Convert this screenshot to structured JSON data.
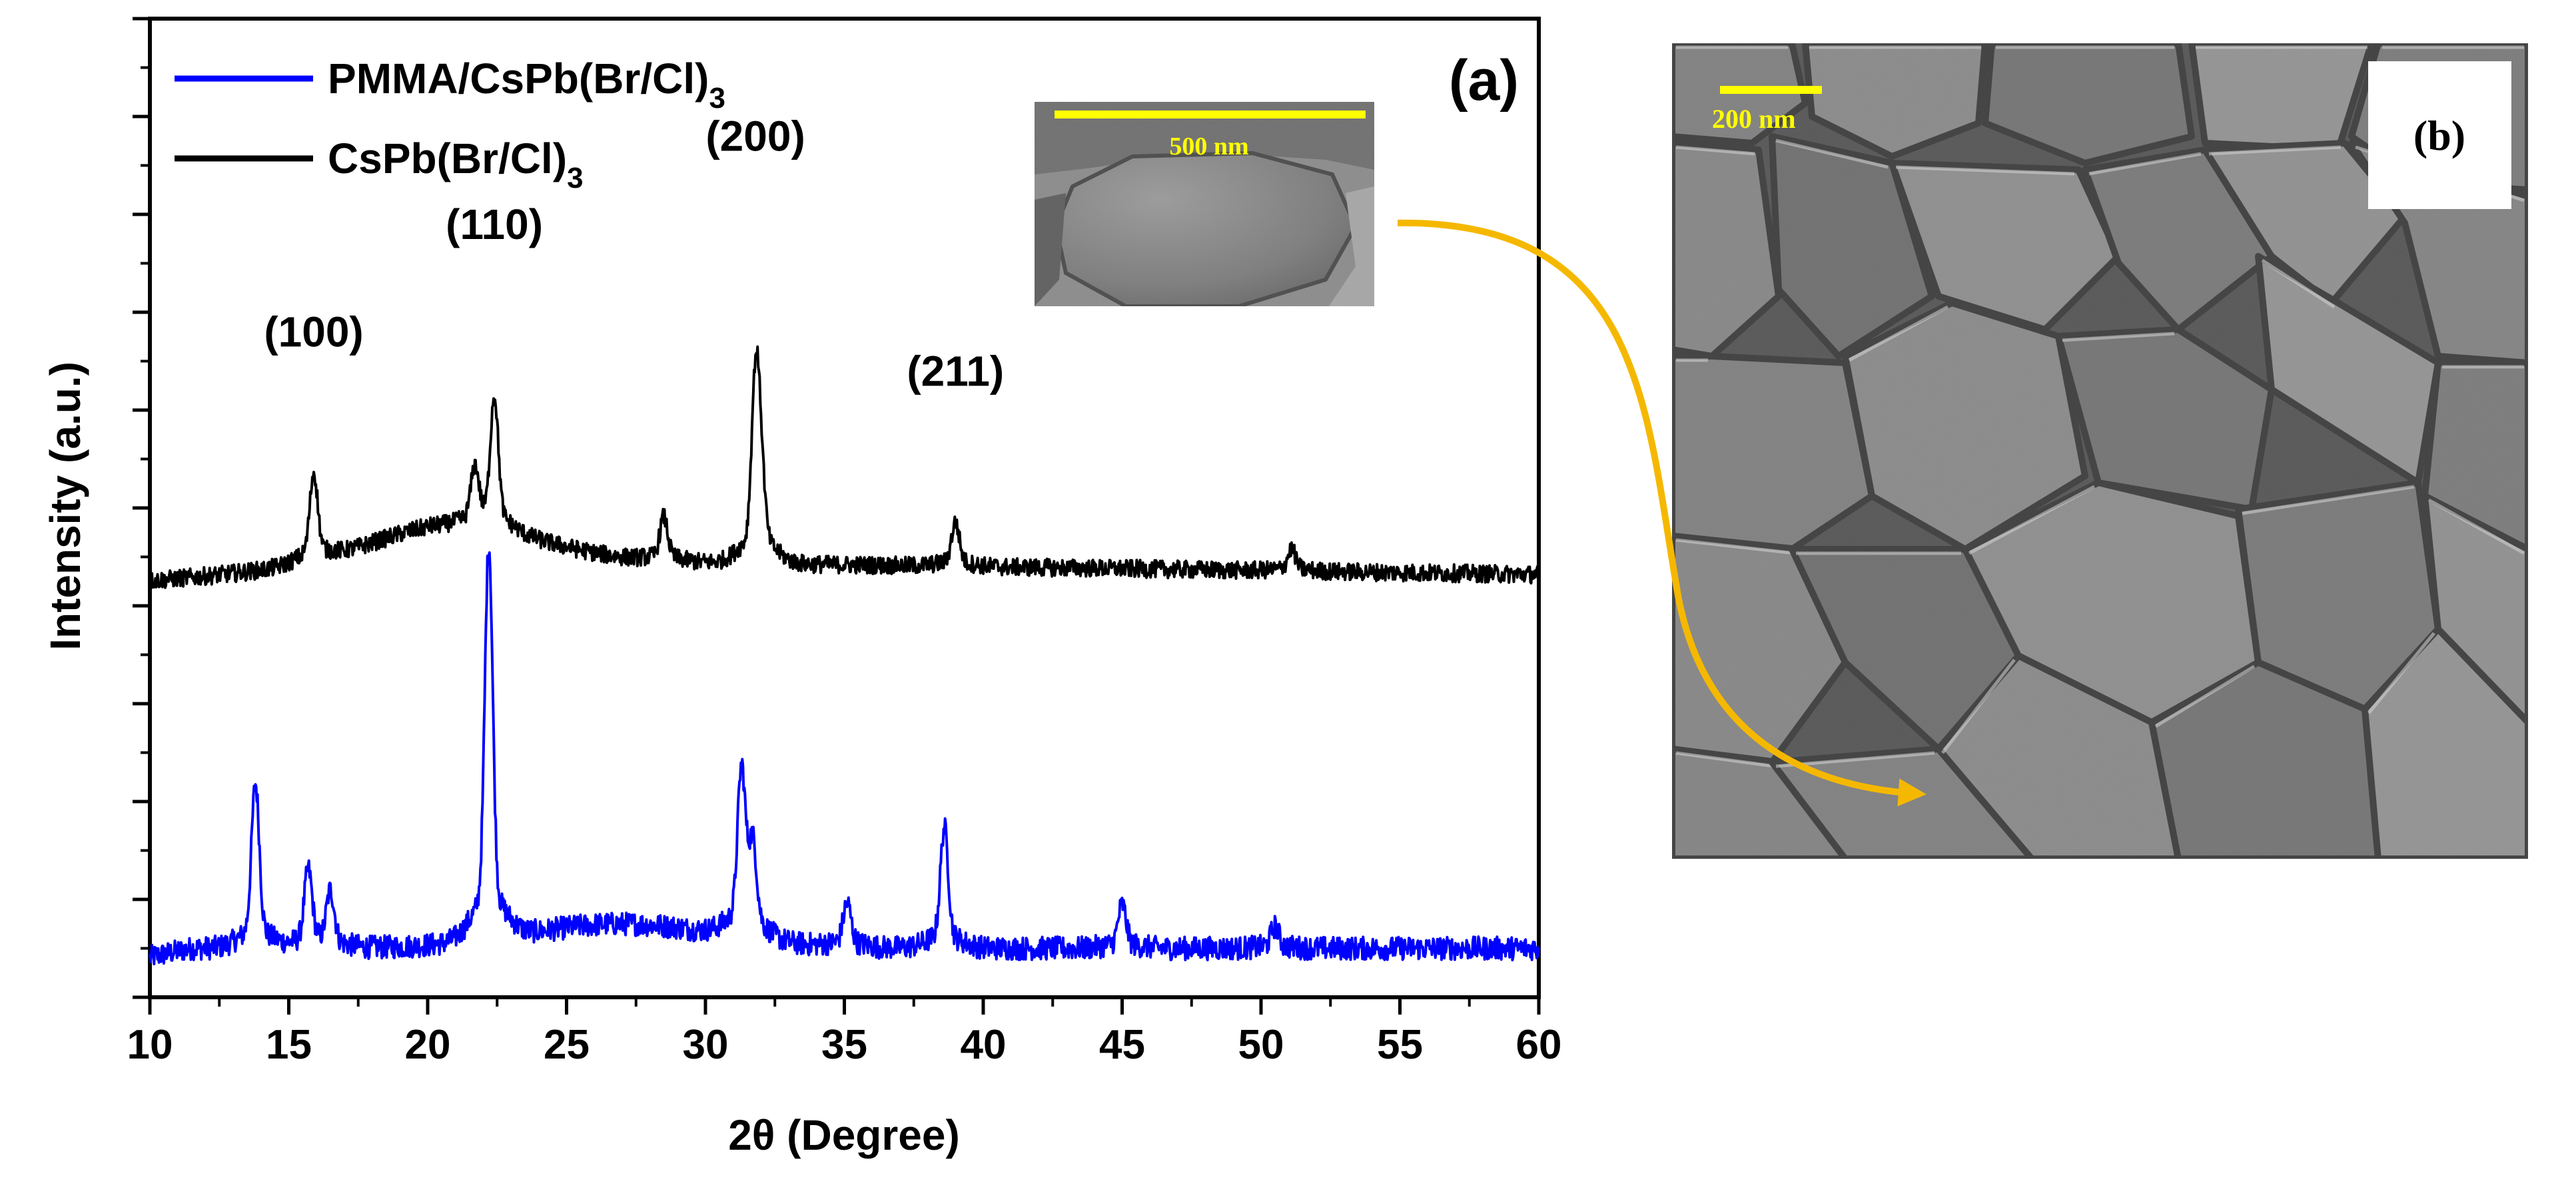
{
  "chart_data": {
    "type": "line",
    "panel_label": "(a)",
    "xlabel": "2θ (Degree)",
    "ylabel": "Intensity (a.u.)",
    "xlim": [
      10,
      60
    ],
    "ylim": [
      0,
      100
    ],
    "x_ticks": [
      10,
      15,
      20,
      25,
      30,
      35,
      40,
      45,
      50,
      55,
      60
    ],
    "y_ticks_labeled": false,
    "grid": false,
    "legend_position": "top-left",
    "series": [
      {
        "name": "PMMA/CsPb(Br/Cl)3",
        "color": "#0000ff",
        "baseline": 5,
        "noise": 1.2,
        "peaks": [
          {
            "x": 13.8,
            "height": 15
          },
          {
            "x": 15.7,
            "height": 7
          },
          {
            "x": 16.5,
            "height": 5
          },
          {
            "x": 22.2,
            "height": 36
          },
          {
            "x": 31.3,
            "height": 15
          },
          {
            "x": 31.7,
            "height": 8
          },
          {
            "x": 35.1,
            "height": 4
          },
          {
            "x": 38.6,
            "height": 11
          },
          {
            "x": 45.0,
            "height": 4
          },
          {
            "x": 50.5,
            "height": 2
          }
        ]
      },
      {
        "name": "CsPb(Br/Cl)3",
        "color": "#000000",
        "baseline": 43,
        "noise": 0.9,
        "peaks": [
          {
            "x": 15.9,
            "height": 8
          },
          {
            "x": 21.7,
            "height": 5
          },
          {
            "x": 22.4,
            "height": 12
          },
          {
            "x": 28.5,
            "height": 4
          },
          {
            "x": 31.8,
            "height": 16
          },
          {
            "x": 32.0,
            "height": 7
          },
          {
            "x": 39.0,
            "height": 4
          },
          {
            "x": 51.1,
            "height": 2
          }
        ]
      }
    ],
    "annotations": [
      {
        "text": "(100)",
        "x": 15.9
      },
      {
        "text": "(110)",
        "x": 22.4
      },
      {
        "text": "(200)",
        "x": 31.8
      },
      {
        "text": "(211)",
        "x": 39.0
      }
    ]
  },
  "images": {
    "inset_scale_label": "500 nm",
    "sem_scale_label": "200 nm",
    "sem_panel_label": "(b)"
  },
  "colors": {
    "arrow": "#f5b800",
    "scale_bar": "#ffff00",
    "sem_gray": "#7a7a7a"
  }
}
